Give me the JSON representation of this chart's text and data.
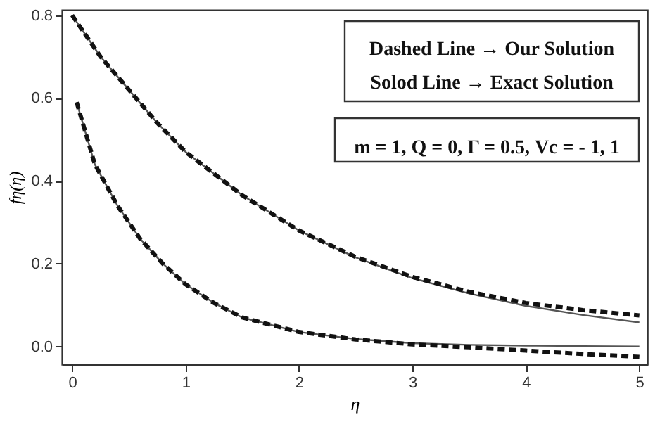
{
  "chart_data": {
    "type": "line",
    "xlabel": "η",
    "ylabel": "fη(η)",
    "annotations": [
      "Dashed Line → Our Solution",
      "Solod Line → Exact Solution",
      "m = 1, Q = 0, Γ = 0.5, Vc = - 1, 1"
    ],
    "xlim": [
      -0.09,
      5.07
    ],
    "ylim": [
      -0.043,
      0.813
    ],
    "xticks": [
      0,
      1,
      2,
      3,
      4,
      5
    ],
    "yticks": [
      {
        "value": 0,
        "label": "0.0"
      },
      {
        "value": 0.2,
        "label": "0.2"
      },
      {
        "value": 0.4,
        "label": "0.4"
      },
      {
        "value": 0.6,
        "label": "0.6"
      },
      {
        "value": 0.8,
        "label": "0.8"
      }
    ],
    "grid": false,
    "series": [
      {
        "color": "#555555",
        "line_style": "solid",
        "x": [
          0,
          0.25,
          0.5,
          0.75,
          1,
          1.5,
          2,
          2.5,
          3,
          3.5,
          4,
          4.5,
          5
        ],
        "values": [
          0.8,
          0.7,
          0.62,
          0.54,
          0.47,
          0.365,
          0.28,
          0.215,
          0.165,
          0.128,
          0.098,
          0.076,
          0.058
        ]
      },
      {
        "color": "#111111",
        "line_style": "dashed",
        "x": [
          0,
          0.25,
          0.5,
          0.75,
          1,
          1.5,
          2,
          2.5,
          3,
          3.5,
          4,
          4.5,
          5
        ],
        "values": [
          0.8,
          0.7,
          0.62,
          0.54,
          0.47,
          0.365,
          0.28,
          0.216,
          0.168,
          0.132,
          0.105,
          0.088,
          0.075
        ]
      },
      {
        "color": "#555555",
        "line_style": "solid",
        "x": [
          0.04,
          0.2,
          0.4,
          0.6,
          0.8,
          1,
          1.25,
          1.5,
          2,
          2.5,
          3,
          3.5,
          4,
          4.5,
          5
        ],
        "values": [
          0.59,
          0.44,
          0.34,
          0.26,
          0.2,
          0.15,
          0.105,
          0.07,
          0.035,
          0.018,
          0.008,
          0.004,
          0.002,
          0.001,
          0.0
        ]
      },
      {
        "color": "#111111",
        "line_style": "dashed",
        "x": [
          0.04,
          0.2,
          0.4,
          0.6,
          0.8,
          1,
          1.25,
          1.5,
          2,
          2.5,
          3,
          3.5,
          4,
          4.5,
          5
        ],
        "values": [
          0.59,
          0.44,
          0.34,
          0.26,
          0.2,
          0.15,
          0.105,
          0.07,
          0.035,
          0.017,
          0.005,
          -0.002,
          -0.01,
          -0.018,
          -0.025
        ]
      }
    ]
  }
}
